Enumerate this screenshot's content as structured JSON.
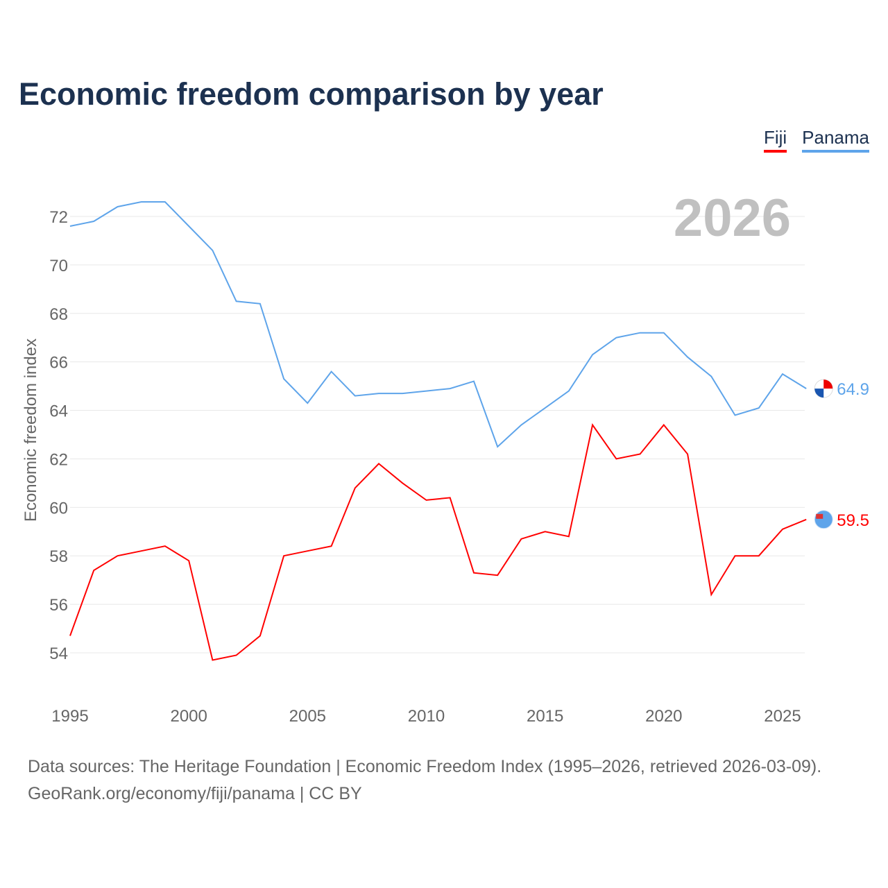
{
  "chart_data": {
    "type": "line",
    "title": "Economic freedom comparison by year",
    "xlabel": "",
    "ylabel": "Economic freedom index",
    "year_label": "2026",
    "xlim": [
      1995,
      2026
    ],
    "ylim": [
      52.5,
      73.5
    ],
    "yticks": [
      54,
      56,
      58,
      60,
      62,
      64,
      66,
      68,
      70,
      72
    ],
    "xticks": [
      1995,
      2000,
      2005,
      2010,
      2015,
      2020,
      2025
    ],
    "grid": true,
    "legend_position": "top-right",
    "x": [
      1995,
      1996,
      1997,
      1998,
      1999,
      2000,
      2001,
      2002,
      2003,
      2004,
      2005,
      2006,
      2007,
      2008,
      2009,
      2010,
      2011,
      2012,
      2013,
      2014,
      2015,
      2016,
      2017,
      2018,
      2019,
      2020,
      2021,
      2022,
      2023,
      2024,
      2025,
      2026
    ],
    "series": [
      {
        "name": "Fiji",
        "color": "#ff0000",
        "end_label": "59.5",
        "values": [
          54.7,
          57.4,
          58.0,
          58.2,
          58.4,
          57.8,
          53.7,
          53.9,
          54.7,
          58.0,
          58.2,
          58.4,
          60.8,
          61.8,
          61.0,
          60.3,
          60.4,
          57.3,
          57.2,
          58.7,
          59.0,
          58.8,
          63.4,
          62.0,
          62.2,
          63.4,
          62.2,
          56.4,
          58.0,
          58.0,
          59.1,
          59.5
        ]
      },
      {
        "name": "Panama",
        "color": "#5ea4ea",
        "end_label": "64.9",
        "values": [
          71.6,
          71.8,
          72.4,
          72.6,
          72.6,
          71.6,
          70.6,
          68.5,
          68.4,
          65.3,
          64.3,
          65.6,
          64.6,
          64.7,
          64.7,
          64.8,
          64.9,
          65.2,
          62.5,
          63.4,
          64.1,
          64.8,
          66.3,
          67.0,
          67.2,
          67.2,
          66.2,
          65.4,
          63.8,
          64.1,
          65.5,
          64.9
        ]
      }
    ]
  },
  "source_line1": "Data sources: The Heritage Foundation | Economic Freedom Index (1995–2026, retrieved 2026-03-09).",
  "source_line2": "GeoRank.org/economy/fiji/panama | CC BY"
}
